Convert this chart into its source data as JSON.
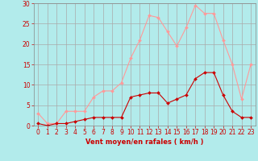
{
  "x": [
    0,
    1,
    2,
    3,
    4,
    5,
    6,
    7,
    8,
    9,
    10,
    11,
    12,
    13,
    14,
    15,
    16,
    17,
    18,
    19,
    20,
    21,
    22,
    23
  ],
  "rafales": [
    3,
    0.5,
    0.5,
    3.5,
    3.5,
    3.5,
    7,
    8.5,
    8.5,
    10.5,
    16.5,
    21,
    27,
    26.5,
    23,
    19.5,
    24,
    29.5,
    27.5,
    27.5,
    21,
    15,
    6.5,
    15
  ],
  "moyen": [
    0.5,
    0,
    0.5,
    0.5,
    1,
    1.5,
    2,
    2,
    2,
    2,
    7,
    7.5,
    8,
    8,
    5.5,
    6.5,
    7.5,
    11.5,
    13,
    13,
    7.5,
    3.5,
    2,
    2
  ],
  "background_color": "#b2ebeb",
  "grid_color": "#aaaaaa",
  "rafales_color": "#ff9999",
  "moyen_color": "#cc0000",
  "xlabel": "Vent moyen/en rafales ( km/h )",
  "xlabel_color": "#cc0000",
  "tick_color": "#cc0000",
  "ylim": [
    0,
    30
  ],
  "xlim_min": -0.5,
  "xlim_max": 23.5,
  "yticks": [
    0,
    5,
    10,
    15,
    20,
    25,
    30
  ],
  "xticks": [
    0,
    1,
    2,
    3,
    4,
    5,
    6,
    7,
    8,
    9,
    10,
    11,
    12,
    13,
    14,
    15,
    16,
    17,
    18,
    19,
    20,
    21,
    22,
    23
  ],
  "tick_fontsize": 5.5,
  "xlabel_fontsize": 6.0
}
